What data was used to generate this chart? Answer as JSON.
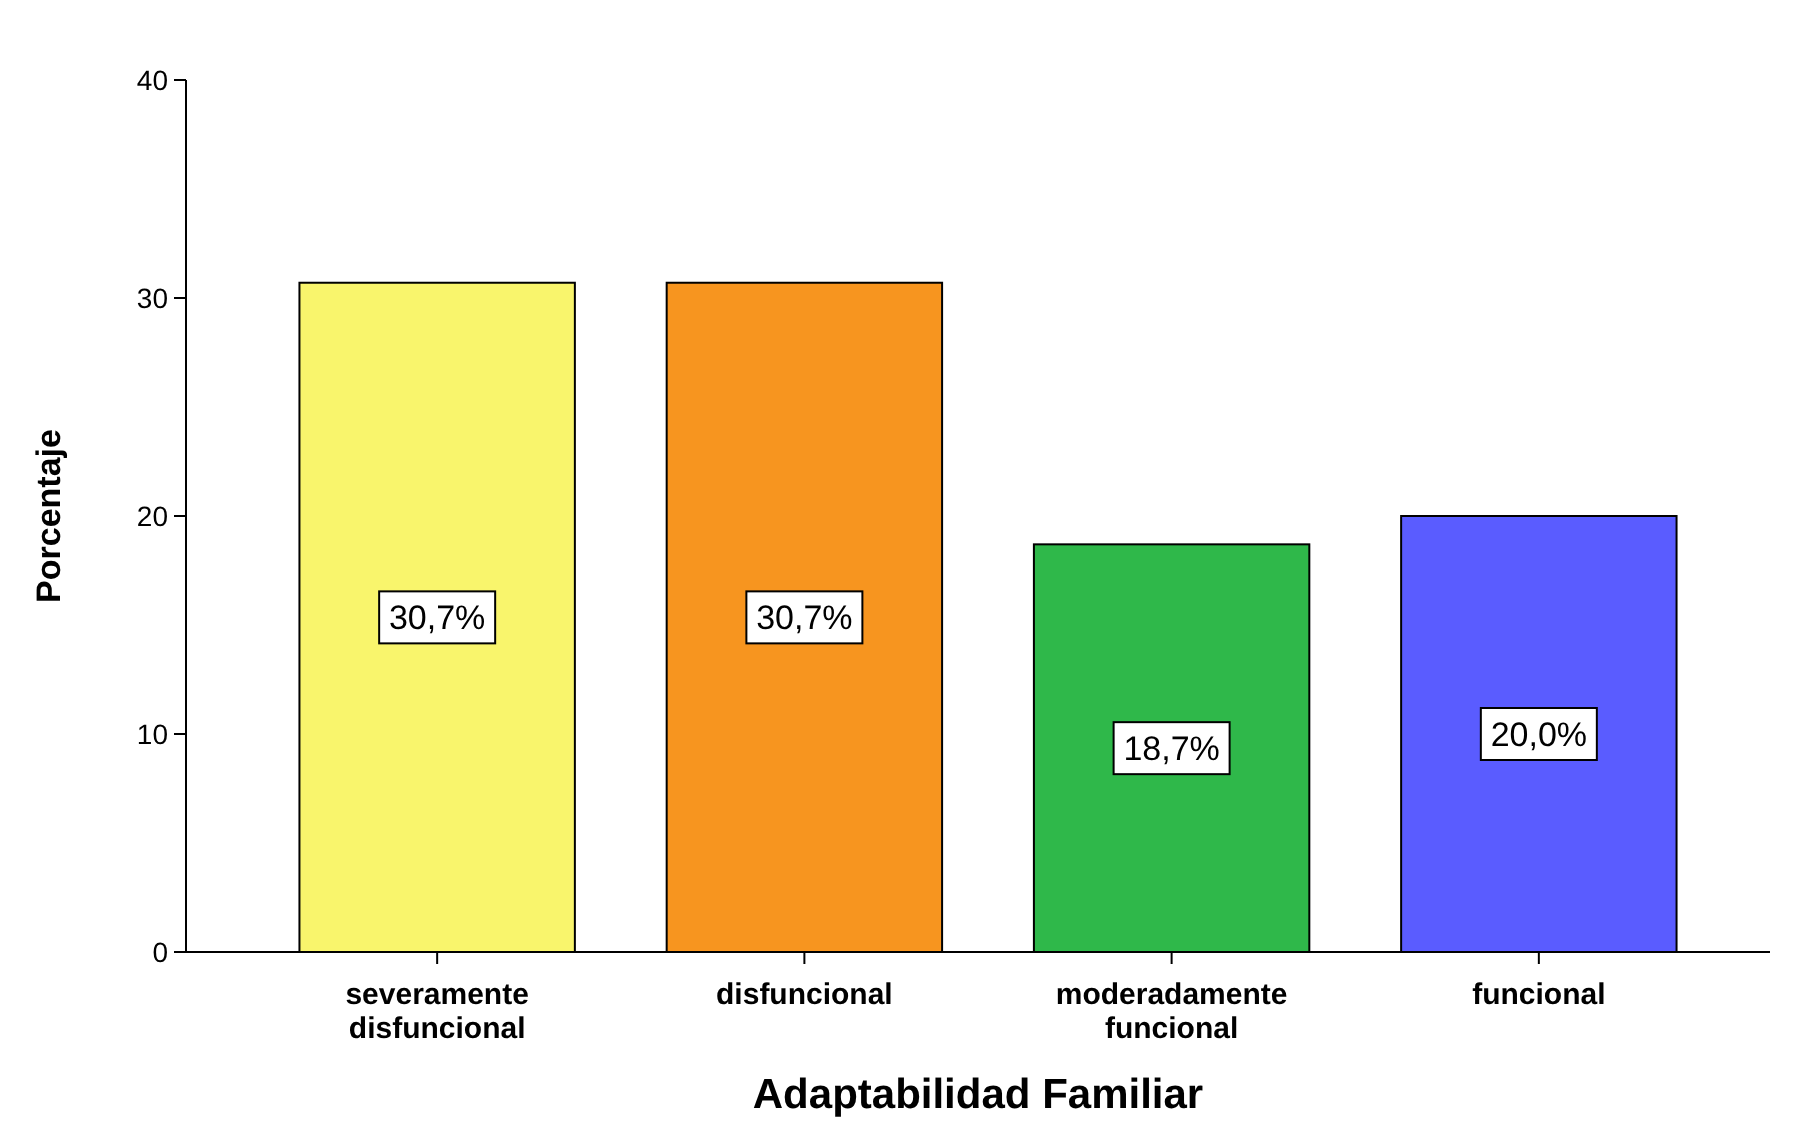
{
  "chart_data": {
    "type": "bar",
    "xlabel": "Adaptabilidad Familiar",
    "ylabel": "Porcentaje",
    "categories": [
      "severamente disfuncional",
      "disfuncional",
      "moderadamente funcional",
      "funcional"
    ],
    "values": [
      30.7,
      30.7,
      18.7,
      20.0
    ],
    "colors": [
      "#f9f56c",
      "#f7951f",
      "#2fb84a",
      "#5a5cff"
    ],
    "value_labels": [
      "30,7%",
      "30,7%",
      "18,7%",
      "20,0%"
    ],
    "ylim": [
      0,
      40
    ],
    "yticks": [
      0,
      10,
      20,
      30,
      40
    ],
    "grid": false
  }
}
